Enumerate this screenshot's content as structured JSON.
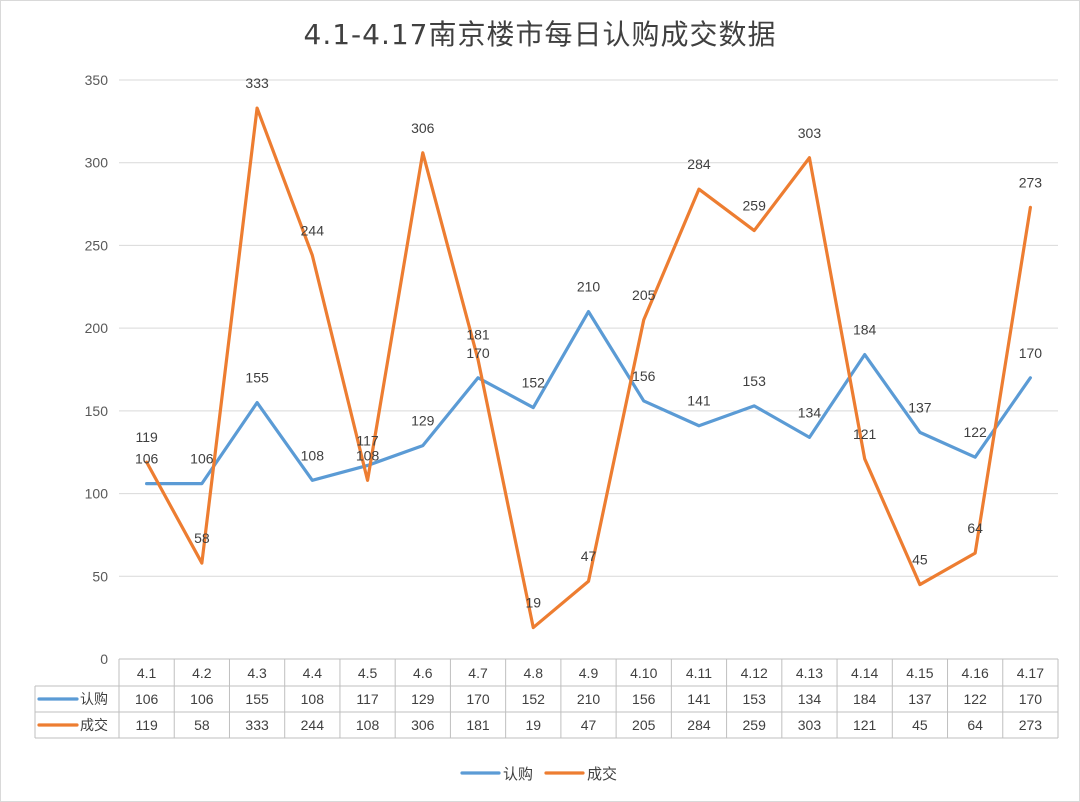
{
  "chart_data": {
    "type": "line",
    "title": "4.1-4.17南京楼市每日认购成交数据",
    "categories": [
      "4.1",
      "4.2",
      "4.3",
      "4.4",
      "4.5",
      "4.6",
      "4.7",
      "4.8",
      "4.9",
      "4.10",
      "4.11",
      "4.12",
      "4.13",
      "4.14",
      "4.15",
      "4.16",
      "4.17"
    ],
    "series": [
      {
        "name": "认购",
        "color": "#5B9BD5",
        "values": [
          106,
          106,
          155,
          108,
          117,
          129,
          170,
          152,
          210,
          156,
          141,
          153,
          134,
          184,
          137,
          122,
          170
        ]
      },
      {
        "name": "成交",
        "color": "#ED7D31",
        "values": [
          119,
          58,
          333,
          244,
          108,
          306,
          181,
          19,
          47,
          205,
          284,
          259,
          303,
          121,
          45,
          64,
          273
        ]
      }
    ],
    "yticks": [
      "0",
      "50",
      "100",
      "150",
      "200",
      "250",
      "300",
      "350"
    ],
    "ylim": [
      0,
      350
    ],
    "grid": true,
    "data_table": true,
    "legend_position": "bottom",
    "xlabel": "",
    "ylabel": ""
  }
}
